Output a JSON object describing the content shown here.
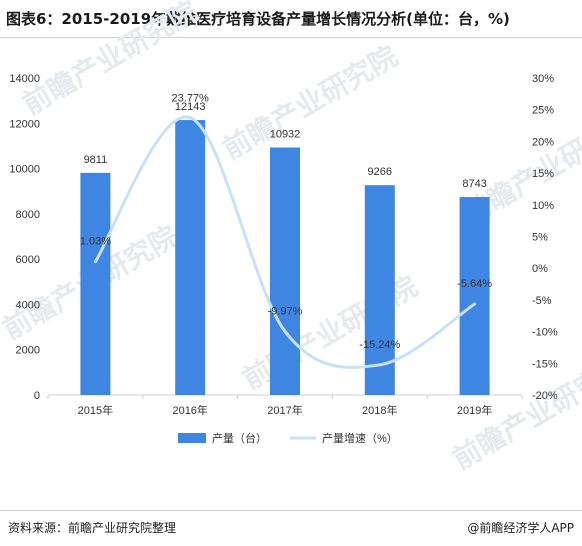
{
  "title": "图表6：2015-2019年戴维医疗培育设备产量增长情况分析(单位：台，%)",
  "source": "资料来源：前瞻产业研究院整理",
  "credit": "@前瞻经济学人APP",
  "watermark": "前瞻产业研究院",
  "colors": {
    "bar": "#3f86e3",
    "line": "#c9e1f8",
    "axis": "#d0d0d0",
    "text": "#333333"
  },
  "chart_data": {
    "type": "bar",
    "categories": [
      "2015年",
      "2016年",
      "2017年",
      "2018年",
      "2019年"
    ],
    "series": [
      {
        "name": "产量（台）",
        "type": "bar",
        "axis": "left",
        "values": [
          9811,
          12143,
          10932,
          9266,
          8743
        ],
        "labels": [
          "9811",
          "12143",
          "10932",
          "9266",
          "8743"
        ]
      },
      {
        "name": "产量增速（%）",
        "type": "line",
        "axis": "right",
        "smooth": true,
        "values": [
          1.03,
          23.77,
          -9.97,
          -15.24,
          -5.64
        ],
        "labels": [
          "1.03%",
          "23.77%",
          "-9.97%",
          "-15.24%",
          "-5.64%"
        ]
      }
    ],
    "y_left": {
      "min": 0,
      "max": 14000,
      "ticks": [
        "0",
        "2000",
        "4000",
        "6000",
        "8000",
        "10000",
        "12000",
        "14000"
      ]
    },
    "y_right": {
      "min": -20,
      "max": 30,
      "ticks": [
        "-20%",
        "-15%",
        "-10%",
        "-5%",
        "0%",
        "5%",
        "10%",
        "15%",
        "20%",
        "25%",
        "30%"
      ]
    },
    "legend": "bottom",
    "grid": false
  }
}
